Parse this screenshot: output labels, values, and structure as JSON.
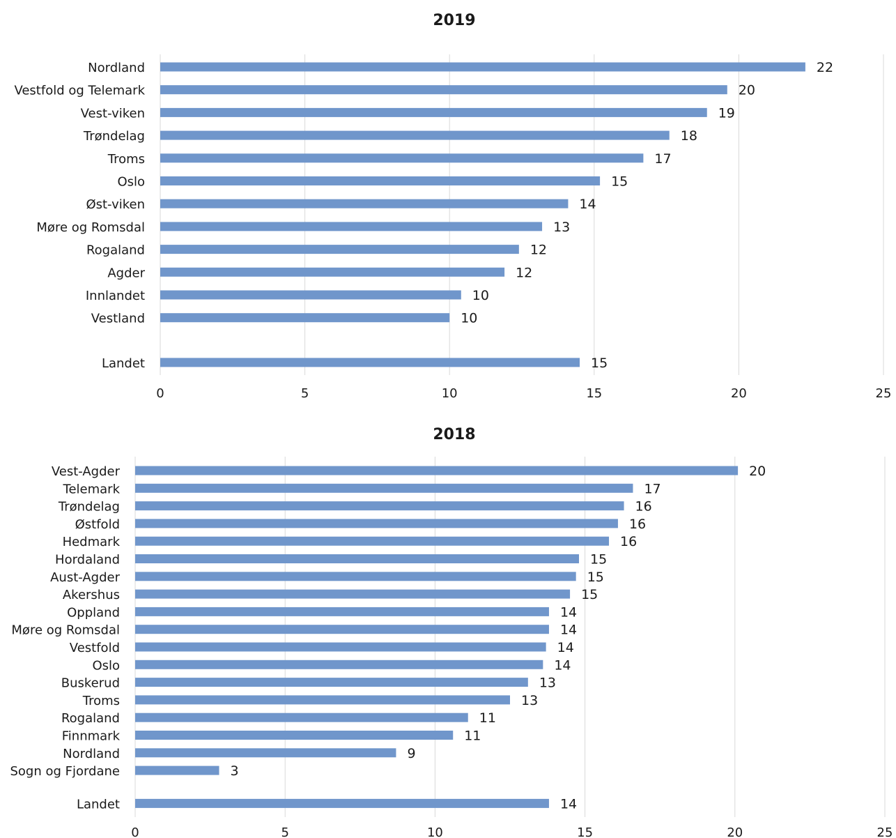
{
  "chart_data": [
    {
      "type": "bar",
      "orientation": "horizontal",
      "title": "2019",
      "categories": [
        "Nordland",
        "Vestfold og Telemark",
        "Vest-viken",
        "Trøndelag",
        "Troms",
        "Oslo",
        "Øst-viken",
        "Møre og Romsdal",
        "Rogaland",
        "Agder",
        "Innlandet",
        "Vestland",
        "Landet"
      ],
      "values": [
        22.3,
        19.6,
        18.9,
        17.6,
        16.7,
        15.2,
        14.1,
        13.2,
        12.4,
        11.9,
        10.4,
        10.0,
        14.5
      ],
      "labels": [
        "22",
        "20",
        "19",
        "18",
        "17",
        "15",
        "14",
        "13",
        "12",
        "12",
        "10",
        "10",
        "15"
      ],
      "xlim": [
        0,
        25
      ],
      "xticks": [
        "0",
        "5",
        "10",
        "15",
        "20",
        "25"
      ],
      "grid": true,
      "color": "#7096CB"
    },
    {
      "type": "bar",
      "orientation": "horizontal",
      "title": "2018",
      "categories": [
        "Vest-Agder",
        "Telemark",
        "Trøndelag",
        "Østfold",
        "Hedmark",
        "Hordaland",
        "Aust-Agder",
        "Akershus",
        "Oppland",
        "Møre og Romsdal",
        "Vestfold",
        "Oslo",
        "Buskerud",
        "Troms",
        "Rogaland",
        "Finnmark",
        "Nordland",
        "Sogn og Fjordane",
        "Landet"
      ],
      "values": [
        20.1,
        16.6,
        16.3,
        16.1,
        15.8,
        14.8,
        14.7,
        14.5,
        13.8,
        13.8,
        13.7,
        13.6,
        13.1,
        12.5,
        11.1,
        10.6,
        8.7,
        2.8,
        13.8
      ],
      "labels": [
        "20",
        "17",
        "16",
        "16",
        "16",
        "15",
        "15",
        "15",
        "14",
        "14",
        "14",
        "14",
        "13",
        "13",
        "11",
        "11",
        "9",
        "3",
        "14"
      ],
      "xlim": [
        0,
        25
      ],
      "xticks": [
        "0",
        "5",
        "10",
        "15",
        "20",
        "25"
      ],
      "grid": true,
      "color": "#7096CB"
    }
  ]
}
